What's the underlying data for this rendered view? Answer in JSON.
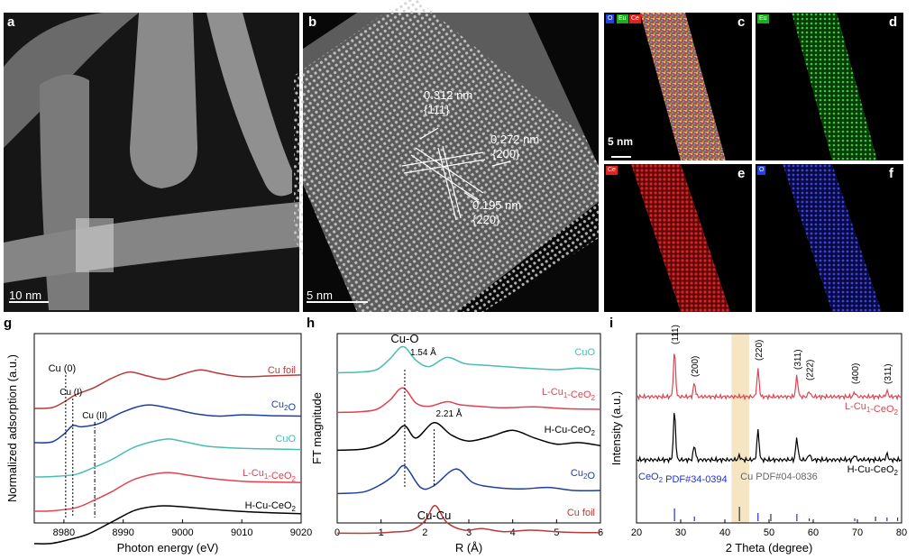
{
  "panels": {
    "a": {
      "label": "a",
      "scalebar": "10 nm"
    },
    "b": {
      "label": "b",
      "scalebar": "5 nm",
      "annotations": [
        {
          "d": "0.312 nm",
          "hkl": "{111}"
        },
        {
          "d": "0.272 nm",
          "hkl": "{200}"
        },
        {
          "d": "0.195 nm",
          "hkl": "{220}"
        }
      ]
    },
    "c": {
      "label": "c",
      "scalebar": "5 nm",
      "tags": [
        "O",
        "Eu",
        "Ce"
      ]
    },
    "d": {
      "label": "d",
      "tags": [
        "Eu"
      ]
    },
    "e": {
      "label": "e",
      "tags": [
        "Ce"
      ]
    },
    "f": {
      "label": "f",
      "tags": [
        "O"
      ]
    },
    "g": {
      "label": "g"
    },
    "h": {
      "label": "h"
    },
    "i": {
      "label": "i"
    }
  },
  "chart_data": [
    {
      "panel": "g",
      "type": "line",
      "xlabel": "Photon energy (eV)",
      "ylabel": "Normalized adsorption (a.u.)",
      "xlim": [
        8975,
        9020
      ],
      "xticks": [
        8980,
        8990,
        9000,
        9010,
        9020
      ],
      "series_labels": [
        "Cu foil",
        "Cu2O",
        "CuO",
        "L-Cu1-CeO2",
        "H-Cu-CeO2"
      ],
      "colors": [
        "#b83a3a",
        "#1f3f9f",
        "#49bdb0",
        "#e04250",
        "#000000"
      ],
      "annotations": [
        "Cu (0)",
        "Cu (I)",
        "Cu (II)"
      ],
      "edge_positions": [
        8980.3,
        8981.5,
        8985.2
      ],
      "series": [
        {
          "name": "Cu foil",
          "x": [
            8975,
            8978,
            8980,
            8982,
            8985,
            8988,
            8991,
            8994,
            8997,
            9000,
            9003,
            9006,
            9010,
            9015,
            9020
          ],
          "y": [
            0.1,
            0.12,
            0.25,
            0.42,
            0.58,
            0.8,
            0.95,
            0.86,
            0.78,
            0.9,
            1.0,
            0.92,
            0.84,
            0.86,
            0.88
          ]
        },
        {
          "name": "Cu2O",
          "x": [
            8975,
            8978,
            8980,
            8981.5,
            8983,
            8986,
            8990,
            8994,
            8998,
            9002,
            9006,
            9010,
            9015,
            9020
          ],
          "y": [
            0.1,
            0.12,
            0.3,
            0.5,
            0.47,
            0.55,
            0.82,
            0.98,
            0.9,
            0.78,
            0.72,
            0.75,
            0.73,
            0.72
          ]
        },
        {
          "name": "CuO",
          "x": [
            8975,
            8978,
            8982,
            8985,
            8988,
            8992,
            8997,
            9000,
            9004,
            9008,
            9012,
            9016,
            9020
          ],
          "y": [
            0.1,
            0.11,
            0.16,
            0.32,
            0.5,
            0.8,
            0.98,
            0.93,
            0.82,
            0.78,
            0.76,
            0.75,
            0.74
          ]
        },
        {
          "name": "L-Cu1-CeO2",
          "x": [
            8975,
            8978,
            8982,
            8985,
            8988,
            8992,
            8997,
            9001,
            9005,
            9010,
            9015,
            9020
          ],
          "y": [
            0.1,
            0.11,
            0.18,
            0.35,
            0.55,
            0.85,
            1.0,
            0.94,
            0.86,
            0.8,
            0.78,
            0.77
          ]
        },
        {
          "name": "H-Cu-CeO2",
          "x": [
            8975,
            8978,
            8981,
            8984,
            8988,
            8992,
            8996,
            9000,
            9005,
            9010,
            9015,
            9020
          ],
          "y": [
            0.1,
            0.11,
            0.2,
            0.32,
            0.6,
            0.88,
            0.98,
            0.96,
            0.9,
            0.85,
            0.82,
            0.8
          ]
        }
      ]
    },
    {
      "panel": "h",
      "type": "line",
      "xlabel": "R (Å)",
      "ylabel": "FT magnitude",
      "xlim": [
        0,
        6
      ],
      "xticks": [
        0,
        1,
        2,
        3,
        4,
        5,
        6
      ],
      "series_labels": [
        "CuO",
        "L-Cu1-CeO2",
        "H-Cu-CeO2",
        "Cu2O",
        "Cu foil"
      ],
      "colors": [
        "#49bdb0",
        "#e04250",
        "#000000",
        "#1f3f9f",
        "#b83a3a"
      ],
      "annotations": [
        "Cu-O",
        "1.54 Å",
        "2.21 Å",
        "Cu-Cu"
      ],
      "peak_positions": [
        1.54,
        2.21
      ],
      "series": [
        {
          "name": "CuO",
          "x": [
            0,
            0.5,
            0.9,
            1.2,
            1.5,
            1.8,
            2.1,
            2.5,
            2.9,
            3.3,
            3.8,
            4.3,
            5.0,
            5.5,
            6.0
          ],
          "y": [
            0.1,
            0.12,
            0.2,
            0.55,
            0.95,
            0.5,
            0.3,
            0.6,
            0.4,
            0.35,
            0.3,
            0.25,
            0.2,
            0.25,
            0.2
          ]
        },
        {
          "name": "L-Cu1-CeO2",
          "x": [
            0,
            0.5,
            0.9,
            1.2,
            1.5,
            1.8,
            2.1,
            2.5,
            2.8,
            3.2,
            3.8,
            4.5,
            5.2,
            6.0
          ],
          "y": [
            0.1,
            0.12,
            0.2,
            0.5,
            0.9,
            0.4,
            0.3,
            0.45,
            0.35,
            0.3,
            0.25,
            0.28,
            0.22,
            0.2
          ]
        },
        {
          "name": "H-Cu-CeO2",
          "x": [
            0,
            0.6,
            1.0,
            1.3,
            1.54,
            1.8,
            2.21,
            2.6,
            3.0,
            3.5,
            4.0,
            4.5,
            5.0,
            5.5,
            6.0
          ],
          "y": [
            0.1,
            0.14,
            0.3,
            0.6,
            0.9,
            0.5,
            1.0,
            0.6,
            0.4,
            0.55,
            0.75,
            0.5,
            0.3,
            0.35,
            0.25
          ]
        },
        {
          "name": "Cu2O",
          "x": [
            0,
            0.6,
            1.0,
            1.3,
            1.54,
            1.9,
            2.2,
            2.7,
            3.1,
            3.6,
            4.2,
            4.8,
            5.4,
            6.0
          ],
          "y": [
            0.1,
            0.15,
            0.4,
            0.7,
            1.0,
            0.3,
            0.35,
            0.9,
            0.45,
            0.3,
            0.25,
            0.3,
            0.2,
            0.2
          ]
        },
        {
          "name": "Cu foil",
          "x": [
            0,
            0.8,
            1.3,
            1.7,
            2.0,
            2.23,
            2.5,
            2.9,
            3.3,
            3.8,
            4.4,
            5.0,
            5.6,
            6.0
          ],
          "y": [
            0.1,
            0.1,
            0.14,
            0.2,
            0.5,
            1.0,
            0.45,
            0.2,
            0.25,
            0.15,
            0.2,
            0.15,
            0.12,
            0.12
          ]
        }
      ]
    },
    {
      "panel": "i",
      "type": "line",
      "xlabel": "2 Theta (degree)",
      "ylabel": "Intensity (a.u.)",
      "xlim": [
        20,
        80
      ],
      "xticks": [
        20,
        30,
        40,
        50,
        60,
        70,
        80
      ],
      "highlight_band": [
        41.5,
        45.5
      ],
      "peak_labels": [
        {
          "x": 28.6,
          "text": "(111)"
        },
        {
          "x": 33.1,
          "text": "(200)"
        },
        {
          "x": 47.5,
          "text": "(220)"
        },
        {
          "x": 56.3,
          "text": "(311)"
        },
        {
          "x": 59.1,
          "text": "(222)"
        },
        {
          "x": 69.4,
          "text": "(400)"
        },
        {
          "x": 76.7,
          "text": "(311)"
        }
      ],
      "series_labels": [
        "L-Cu1-CeO2",
        "H-Cu-CeO2"
      ],
      "colors": [
        "#e04250",
        "#000000"
      ],
      "reference_labels": [
        "CeO2 PDF#34-0394",
        "Cu PDF#04-0836"
      ],
      "reference_colors": [
        "#2233cc",
        "#333333"
      ],
      "references": {
        "CeO2": [
          28.6,
          33.1,
          47.5,
          56.3,
          59.1,
          69.4,
          76.7,
          79.1
        ],
        "Cu": [
          43.3,
          50.4,
          74.1
        ]
      },
      "series": [
        {
          "name": "L-Cu1-CeO2",
          "peaks": [
            [
              28.6,
              1.0
            ],
            [
              33.1,
              0.3
            ],
            [
              47.5,
              0.6
            ],
            [
              56.3,
              0.45
            ],
            [
              59.1,
              0.12
            ],
            [
              69.4,
              0.1
            ],
            [
              76.7,
              0.12
            ]
          ]
        },
        {
          "name": "H-Cu-CeO2",
          "peaks": [
            [
              28.6,
              1.0
            ],
            [
              33.1,
              0.3
            ],
            [
              43.3,
              0.08
            ],
            [
              47.5,
              0.6
            ],
            [
              56.3,
              0.45
            ],
            [
              59.1,
              0.12
            ],
            [
              69.4,
              0.1
            ],
            [
              76.7,
              0.12
            ]
          ]
        }
      ]
    }
  ]
}
